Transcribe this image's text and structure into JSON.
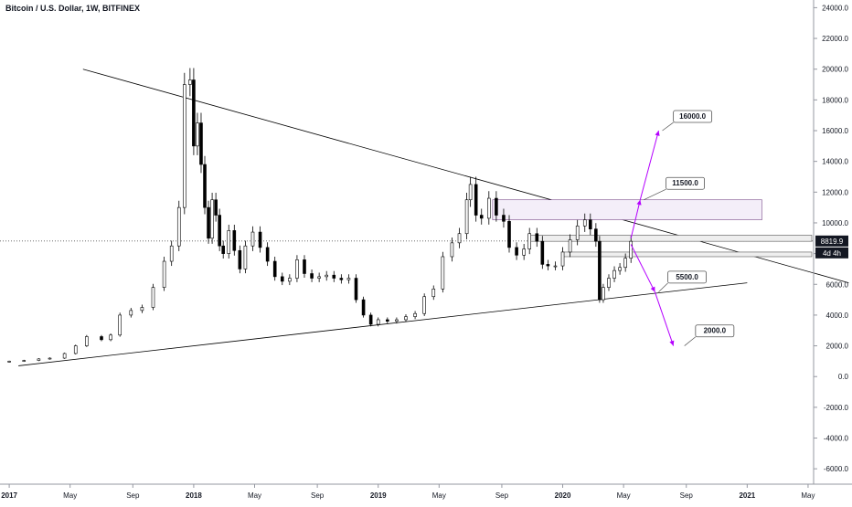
{
  "header": {
    "title": "Bitcoin / U.S. Dollar, 1W, BITFINEX"
  },
  "colors": {
    "up": "#ffffff",
    "down": "#000000",
    "wick": "#000000",
    "trend": "#000000",
    "arrow": "#b500ff",
    "zone_fill": "#f4eef9",
    "zone_stroke": "#7a4c8a"
  },
  "chart_data": {
    "type": "candlestick",
    "title": "Bitcoin / U.S. Dollar, 1W, BITFINEX",
    "y_ticks": [
      "24000.0",
      "22000.0",
      "20000.0",
      "18000.0",
      "16000.0",
      "14000.0",
      "12000.0",
      "10000.0",
      "8000.0",
      "6000.0",
      "4000.0",
      "2000.0",
      "0.0",
      "-2000.0",
      "-4000.0",
      "-6000.0"
    ],
    "y_tick_values": [
      24000,
      22000,
      20000,
      18000,
      16000,
      14000,
      12000,
      10000,
      8000,
      6000,
      4000,
      2000,
      0,
      -2000,
      -4000,
      -6000
    ],
    "x_ticks": [
      "2017",
      "May",
      "Sep",
      "2018",
      "May",
      "Sep",
      "2019",
      "May",
      "Sep",
      "2020",
      "May",
      "Sep",
      "2021",
      "May"
    ],
    "x_tick_dates": [
      2017.0,
      2017.33,
      2017.67,
      2018.0,
      2018.33,
      2018.67,
      2019.0,
      2019.33,
      2019.67,
      2020.0,
      2020.33,
      2020.67,
      2021.0,
      2021.33
    ],
    "ylim": [
      -7000,
      24500
    ],
    "xlim": [
      2016.95,
      2021.36
    ],
    "last_price": "8819.9",
    "countdown": "4d 4h",
    "series": [
      {
        "t": 2017.0,
        "v": 1000
      },
      {
        "t": 2017.08,
        "v": 1050
      },
      {
        "t": 2017.16,
        "v": 1150
      },
      {
        "t": 2017.22,
        "v": 1200
      },
      {
        "t": 2017.3,
        "v": 1500
      },
      {
        "t": 2017.36,
        "v": 2000
      },
      {
        "t": 2017.42,
        "v": 2600
      },
      {
        "t": 2017.5,
        "v": 2400
      },
      {
        "t": 2017.55,
        "v": 2700
      },
      {
        "t": 2017.6,
        "v": 4000
      },
      {
        "t": 2017.66,
        "v": 4300
      },
      {
        "t": 2017.72,
        "v": 4500
      },
      {
        "t": 2017.78,
        "v": 5800
      },
      {
        "t": 2017.84,
        "v": 7500
      },
      {
        "t": 2017.88,
        "v": 8500
      },
      {
        "t": 2017.92,
        "v": 11000
      },
      {
        "t": 2017.95,
        "v": 19000
      },
      {
        "t": 2017.98,
        "v": 19300
      },
      {
        "t": 2018.0,
        "v": 15000
      },
      {
        "t": 2018.02,
        "v": 16500
      },
      {
        "t": 2018.04,
        "v": 13800
      },
      {
        "t": 2018.06,
        "v": 11000
      },
      {
        "t": 2018.08,
        "v": 9000
      },
      {
        "t": 2018.1,
        "v": 11500
      },
      {
        "t": 2018.12,
        "v": 10500
      },
      {
        "t": 2018.14,
        "v": 8500
      },
      {
        "t": 2018.16,
        "v": 8000
      },
      {
        "t": 2018.19,
        "v": 9500
      },
      {
        "t": 2018.22,
        "v": 8200
      },
      {
        "t": 2018.25,
        "v": 7000
      },
      {
        "t": 2018.28,
        "v": 8500
      },
      {
        "t": 2018.32,
        "v": 9400
      },
      {
        "t": 2018.36,
        "v": 8400
      },
      {
        "t": 2018.4,
        "v": 7500
      },
      {
        "t": 2018.44,
        "v": 6500
      },
      {
        "t": 2018.48,
        "v": 6200
      },
      {
        "t": 2018.52,
        "v": 6400
      },
      {
        "t": 2018.56,
        "v": 7600
      },
      {
        "t": 2018.6,
        "v": 6700
      },
      {
        "t": 2018.64,
        "v": 6400
      },
      {
        "t": 2018.68,
        "v": 6500
      },
      {
        "t": 2018.72,
        "v": 6600
      },
      {
        "t": 2018.76,
        "v": 6400
      },
      {
        "t": 2018.8,
        "v": 6300
      },
      {
        "t": 2018.84,
        "v": 6400
      },
      {
        "t": 2018.88,
        "v": 5000
      },
      {
        "t": 2018.92,
        "v": 4000
      },
      {
        "t": 2018.96,
        "v": 3400
      },
      {
        "t": 2019.0,
        "v": 3700
      },
      {
        "t": 2019.05,
        "v": 3600
      },
      {
        "t": 2019.1,
        "v": 3700
      },
      {
        "t": 2019.15,
        "v": 3900
      },
      {
        "t": 2019.2,
        "v": 4100
      },
      {
        "t": 2019.25,
        "v": 5200
      },
      {
        "t": 2019.3,
        "v": 5700
      },
      {
        "t": 2019.35,
        "v": 7800
      },
      {
        "t": 2019.4,
        "v": 8700
      },
      {
        "t": 2019.44,
        "v": 9300
      },
      {
        "t": 2019.48,
        "v": 11500
      },
      {
        "t": 2019.5,
        "v": 12500
      },
      {
        "t": 2019.53,
        "v": 10500
      },
      {
        "t": 2019.56,
        "v": 10300
      },
      {
        "t": 2019.6,
        "v": 11600
      },
      {
        "t": 2019.64,
        "v": 10500
      },
      {
        "t": 2019.68,
        "v": 10100
      },
      {
        "t": 2019.71,
        "v": 8400
      },
      {
        "t": 2019.75,
        "v": 7900
      },
      {
        "t": 2019.79,
        "v": 8300
      },
      {
        "t": 2019.82,
        "v": 9300
      },
      {
        "t": 2019.86,
        "v": 8800
      },
      {
        "t": 2019.89,
        "v": 7300
      },
      {
        "t": 2019.92,
        "v": 7200
      },
      {
        "t": 2019.96,
        "v": 7200
      },
      {
        "t": 2020.0,
        "v": 8100
      },
      {
        "t": 2020.04,
        "v": 8900
      },
      {
        "t": 2020.08,
        "v": 9800
      },
      {
        "t": 2020.12,
        "v": 10200
      },
      {
        "t": 2020.15,
        "v": 9600
      },
      {
        "t": 2020.18,
        "v": 8800
      },
      {
        "t": 2020.2,
        "v": 5000
      },
      {
        "t": 2020.22,
        "v": 5800
      },
      {
        "t": 2020.25,
        "v": 6400
      },
      {
        "t": 2020.28,
        "v": 6900
      },
      {
        "t": 2020.31,
        "v": 7100
      },
      {
        "t": 2020.34,
        "v": 7700
      },
      {
        "t": 2020.37,
        "v": 8800
      }
    ]
  },
  "annotations": {
    "targets": [
      "16000.0",
      "11500.0",
      "5500.0",
      "2000.0"
    ]
  }
}
